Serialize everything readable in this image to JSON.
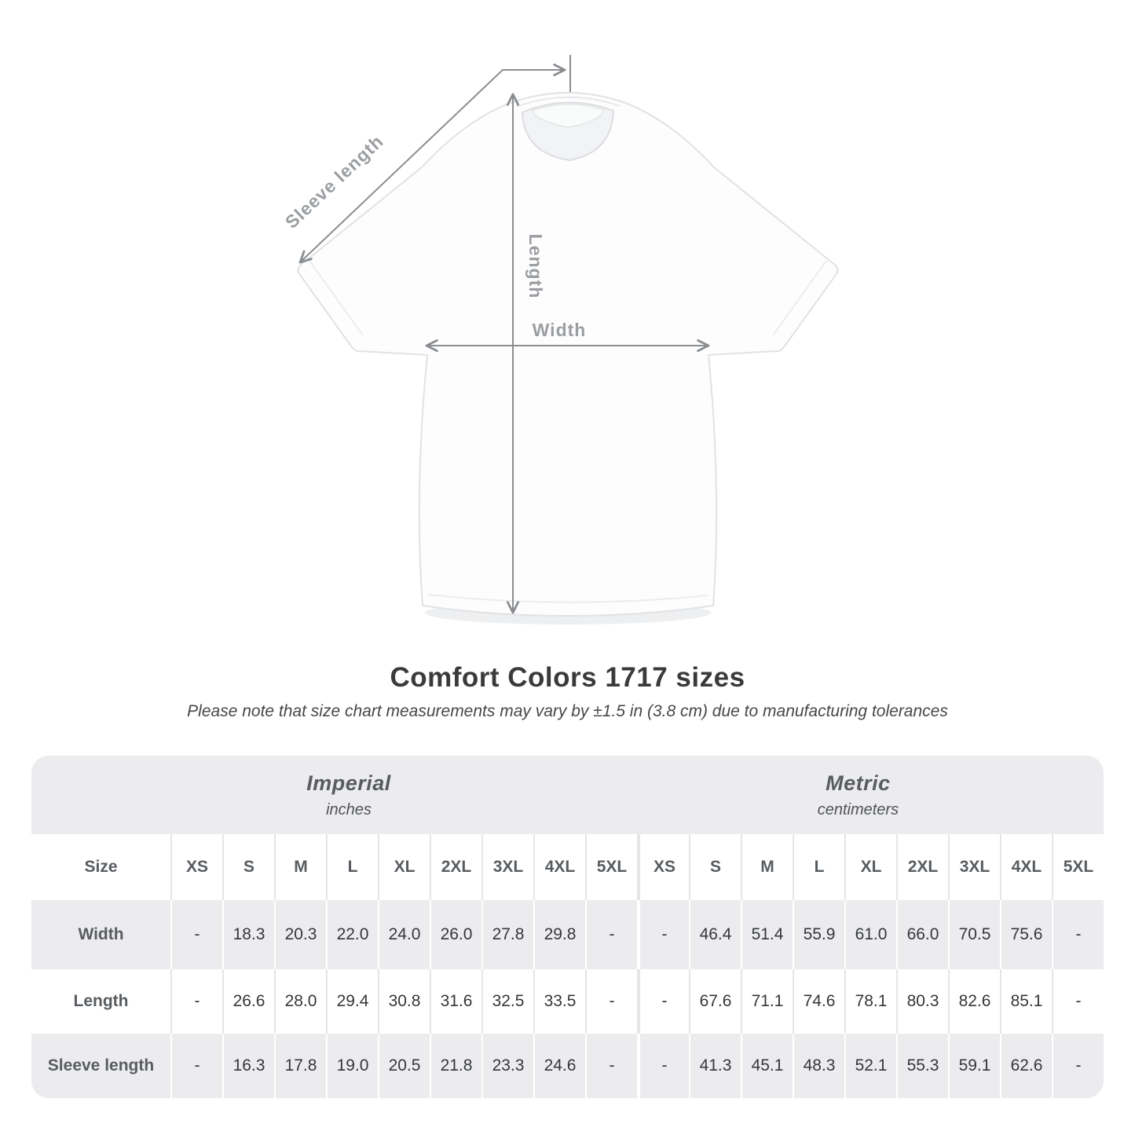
{
  "diagram": {
    "sleeve_label": "Sleeve length",
    "length_label": "Length",
    "width_label": "Width",
    "line_color": "#8b8e91",
    "label_color": "#9b9ea1"
  },
  "title": "Comfort Colors 1717 sizes",
  "subtitle": "Please note that size chart measurements may vary by ±1.5 in (3.8 cm) due to manufacturing tolerances",
  "table": {
    "size_header_label": "Size",
    "sizes": [
      "XS",
      "S",
      "M",
      "L",
      "XL",
      "2XL",
      "3XL",
      "4XL",
      "5XL"
    ],
    "groups": [
      {
        "name": "Imperial",
        "unit": "inches"
      },
      {
        "name": "Metric",
        "unit": "centimeters"
      }
    ],
    "rows": [
      {
        "label": "Width",
        "imperial": [
          "-",
          "18.3",
          "20.3",
          "22.0",
          "24.0",
          "26.0",
          "27.8",
          "29.8",
          "-"
        ],
        "metric": [
          "-",
          "46.4",
          "51.4",
          "55.9",
          "61.0",
          "66.0",
          "70.5",
          "75.6",
          "-"
        ]
      },
      {
        "label": "Length",
        "imperial": [
          "-",
          "26.6",
          "28.0",
          "29.4",
          "30.8",
          "31.6",
          "32.5",
          "33.5",
          "-"
        ],
        "metric": [
          "-",
          "67.6",
          "71.1",
          "74.6",
          "78.1",
          "80.3",
          "82.6",
          "85.1",
          "-"
        ]
      },
      {
        "label": "Sleeve length",
        "imperial": [
          "-",
          "16.3",
          "17.8",
          "19.0",
          "20.5",
          "21.8",
          "23.3",
          "24.6",
          "-"
        ],
        "metric": [
          "-",
          "41.3",
          "45.1",
          "48.3",
          "52.1",
          "55.3",
          "59.1",
          "62.6",
          "-"
        ]
      }
    ]
  }
}
